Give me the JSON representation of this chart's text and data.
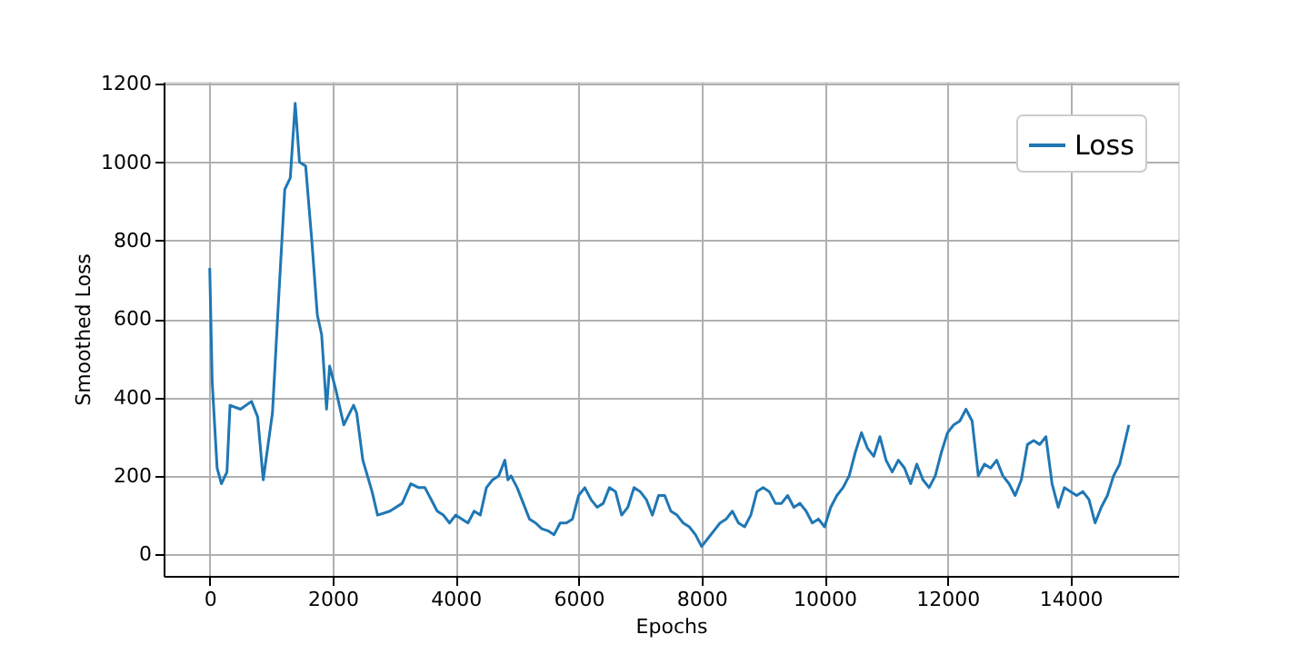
{
  "chart_data": {
    "type": "line",
    "xlabel": "Epochs",
    "ylabel": "Smoothed Loss",
    "xlim": [
      -750,
      15750
    ],
    "ylim": [
      -55,
      1205
    ],
    "xticks": [
      0,
      2000,
      4000,
      6000,
      8000,
      10000,
      12000,
      14000
    ],
    "yticks": [
      0,
      200,
      400,
      600,
      800,
      1000,
      1200
    ],
    "grid": true,
    "legend": "top right",
    "series": [
      {
        "name": "Loss",
        "color": "#1f77b4",
        "x": [
          0,
          40,
          120,
          190,
          280,
          330,
          500,
          680,
          780,
          870,
          1020,
          1120,
          1220,
          1310,
          1390,
          1460,
          1560,
          1660,
          1750,
          1820,
          1900,
          1950,
          2050,
          2180,
          2340,
          2390,
          2490,
          2640,
          2730,
          2930,
          3130,
          3270,
          3400,
          3500,
          3600,
          3700,
          3800,
          3900,
          4000,
          4100,
          4200,
          4300,
          4400,
          4500,
          4600,
          4700,
          4800,
          4850,
          4900,
          5000,
          5100,
          5200,
          5300,
          5400,
          5500,
          5600,
          5700,
          5800,
          5900,
          6000,
          6100,
          6200,
          6300,
          6400,
          6500,
          6600,
          6700,
          6800,
          6900,
          7000,
          7100,
          7200,
          7300,
          7400,
          7500,
          7600,
          7700,
          7800,
          7900,
          8000,
          8100,
          8200,
          8300,
          8400,
          8500,
          8600,
          8700,
          8800,
          8900,
          9000,
          9100,
          9200,
          9300,
          9400,
          9500,
          9600,
          9700,
          9800,
          9900,
          10000,
          10100,
          10200,
          10300,
          10400,
          10500,
          10600,
          10700,
          10800,
          10900,
          11000,
          11100,
          11200,
          11300,
          11400,
          11500,
          11600,
          11700,
          11800,
          11900,
          12000,
          12100,
          12200,
          12300,
          12400,
          12500,
          12600,
          12700,
          12800,
          12900,
          13000,
          13100,
          13200,
          13300,
          13400,
          13500,
          13600,
          13700,
          13800,
          13900,
          14000,
          14100,
          14200,
          14300,
          14400,
          14500,
          14600,
          14700,
          14800,
          14950
        ],
        "values": [
          730,
          440,
          220,
          180,
          210,
          380,
          370,
          390,
          350,
          190,
          360,
          650,
          930,
          960,
          1150,
          1000,
          990,
          800,
          610,
          560,
          370,
          480,
          420,
          330,
          380,
          360,
          240,
          160,
          100,
          110,
          130,
          180,
          170,
          170,
          140,
          110,
          100,
          80,
          100,
          90,
          80,
          110,
          100,
          170,
          190,
          200,
          240,
          190,
          200,
          170,
          130,
          90,
          80,
          65,
          60,
          50,
          80,
          80,
          90,
          150,
          170,
          140,
          120,
          130,
          170,
          160,
          100,
          120,
          170,
          160,
          140,
          100,
          150,
          150,
          110,
          100,
          80,
          70,
          50,
          20,
          40,
          60,
          80,
          90,
          110,
          80,
          70,
          100,
          160,
          170,
          160,
          130,
          130,
          150,
          120,
          130,
          110,
          80,
          90,
          70,
          120,
          150,
          170,
          200,
          260,
          310,
          270,
          250,
          300,
          240,
          210,
          240,
          220,
          180,
          230,
          190,
          170,
          200,
          260,
          310,
          330,
          340,
          370,
          340,
          200,
          230,
          220,
          240,
          200,
          180,
          150,
          190,
          280,
          290,
          280,
          300,
          180,
          120,
          170,
          160,
          150,
          160,
          140,
          80,
          120,
          150,
          200,
          230,
          330
        ]
      }
    ]
  }
}
